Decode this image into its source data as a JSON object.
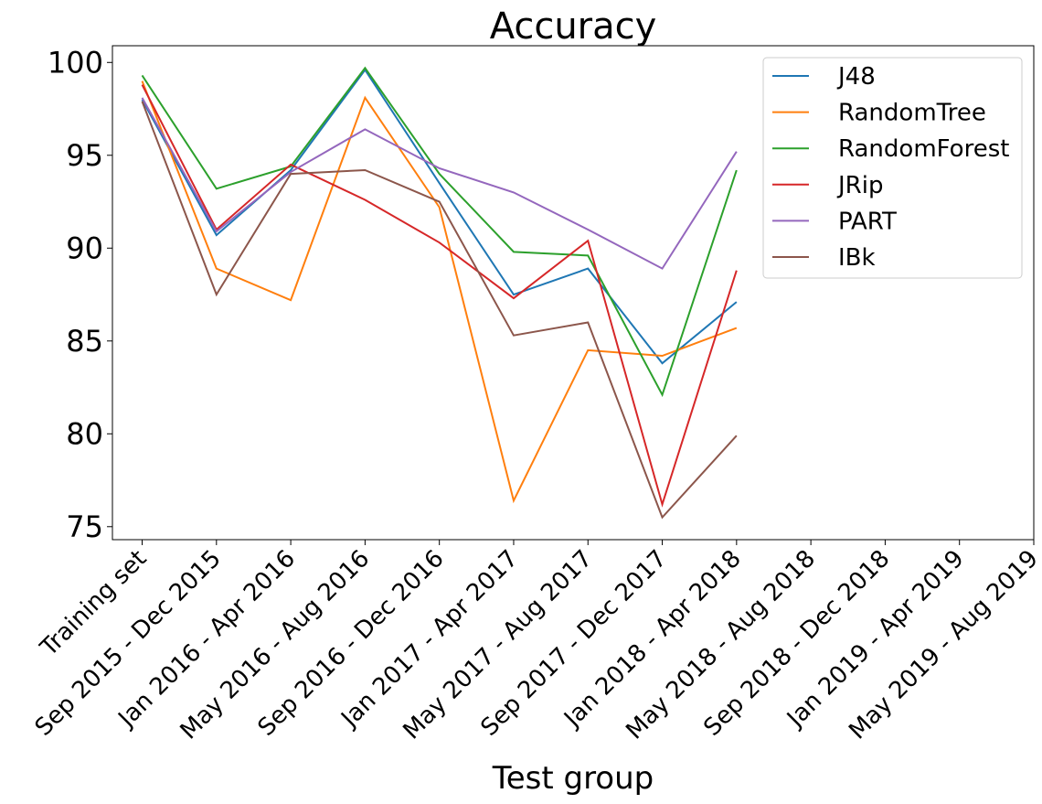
{
  "chart_data": {
    "type": "line",
    "title": "Accuracy",
    "x_label": "Test group",
    "categories": [
      "Training set",
      "Sep 2015 - Dec 2015",
      "Jan 2016 - Apr 2016",
      "May 2016 - Aug 2016",
      "Sep 2016 - Dec 2016",
      "Jan 2017 - Apr 2017",
      "May 2017 - Aug 2017",
      "Sep 2017 - Dec 2017",
      "Jan 2018 - Apr 2018",
      "May 2018 - Aug 2018",
      "Sep 2018 - Dec 2018",
      "Jan 2019 - Apr 2019",
      "May 2019 - Aug 2019"
    ],
    "series": [
      {
        "name": "J48",
        "color": "#1f77b4",
        "values": [
          98.0,
          90.7,
          94.2,
          99.6,
          93.5,
          87.5,
          88.9,
          83.8,
          87.1,
          null,
          null,
          null,
          null
        ]
      },
      {
        "name": "RandomTree",
        "color": "#ff7f0e",
        "values": [
          99.0,
          88.9,
          87.2,
          98.1,
          92.2,
          76.4,
          84.5,
          84.2,
          85.7,
          null,
          null,
          null,
          null
        ]
      },
      {
        "name": "RandomForest",
        "color": "#2ca02c",
        "values": [
          99.3,
          93.2,
          94.4,
          99.7,
          94.0,
          89.8,
          89.6,
          82.1,
          94.2,
          null,
          null,
          null,
          null
        ]
      },
      {
        "name": "JRip",
        "color": "#d62728",
        "values": [
          98.8,
          91.0,
          94.5,
          92.6,
          90.3,
          87.3,
          90.4,
          76.2,
          88.8,
          null,
          null,
          null,
          null
        ]
      },
      {
        "name": "PART",
        "color": "#9467bd",
        "values": [
          98.1,
          90.9,
          94.1,
          96.4,
          94.3,
          93.0,
          91.0,
          88.9,
          95.2,
          null,
          null,
          null,
          null
        ]
      },
      {
        "name": "IBk",
        "color": "#8c564b",
        "values": [
          97.9,
          87.5,
          94.0,
          94.2,
          92.5,
          85.3,
          86.0,
          75.5,
          79.9,
          null,
          null,
          null,
          null
        ]
      }
    ],
    "ylim": [
      74.3,
      100.9
    ],
    "yticks": [
      75,
      80,
      85,
      90,
      95,
      100
    ],
    "legend": "upper right"
  }
}
